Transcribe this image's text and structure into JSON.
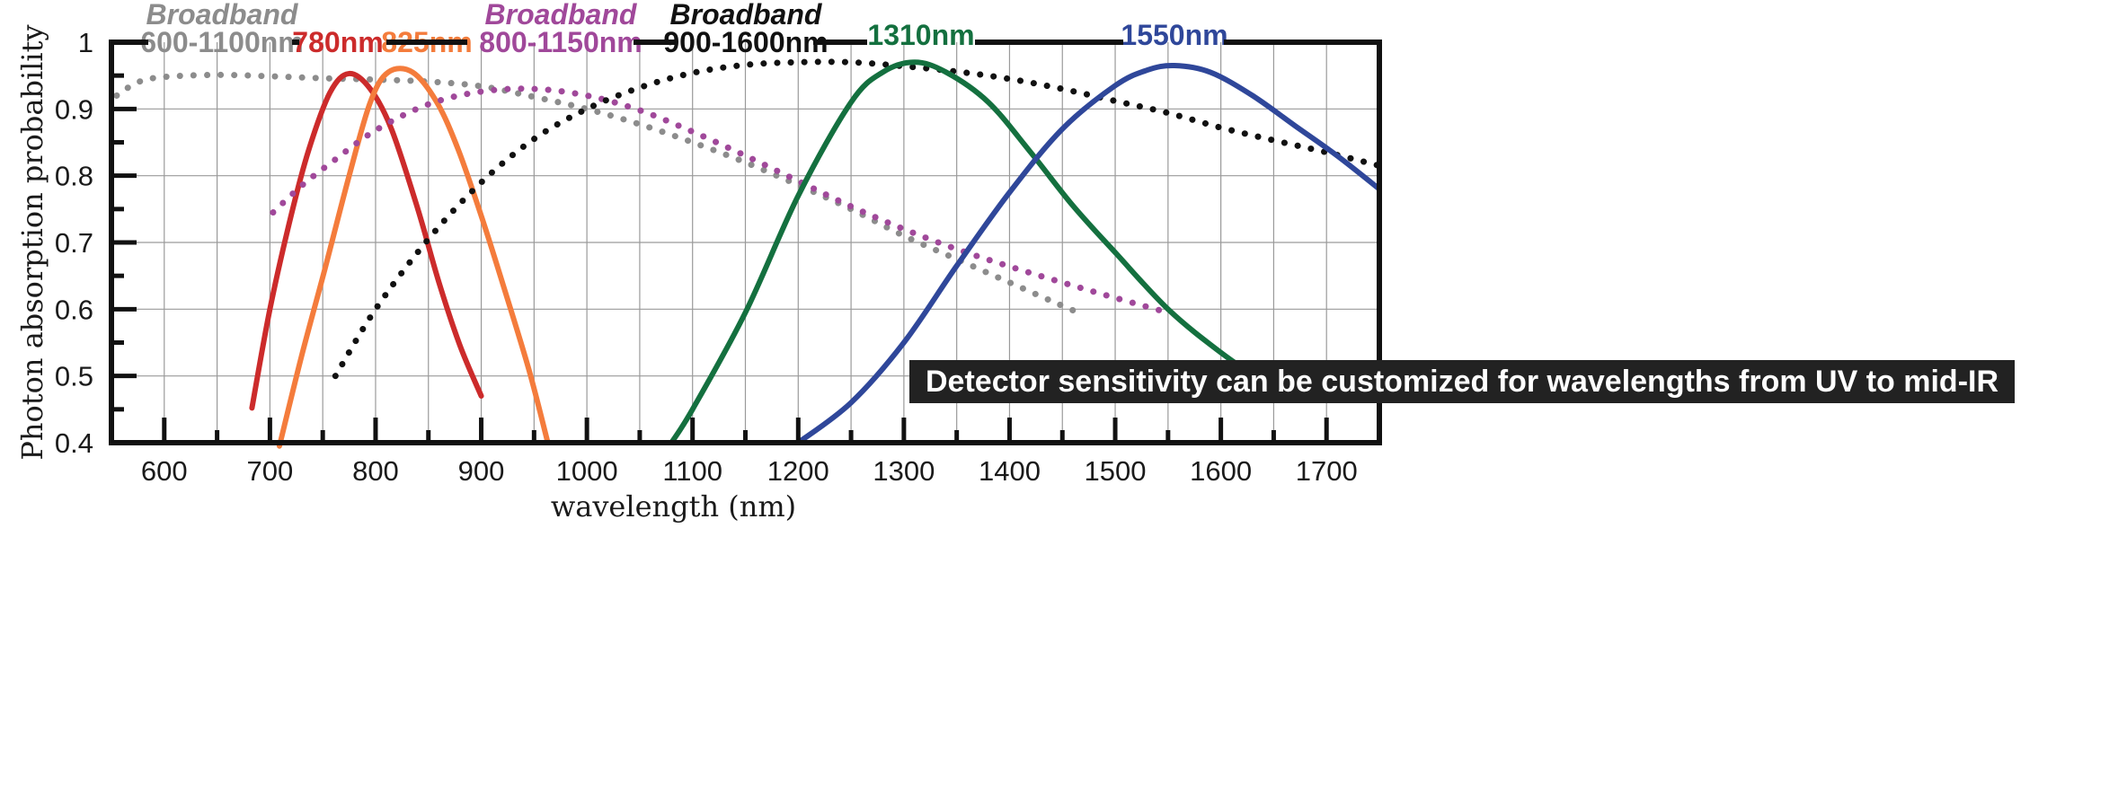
{
  "chart_data": {
    "type": "line",
    "title": "",
    "xlabel": "wavelength (nm)",
    "ylabel": "Photon absorption probability",
    "xlim": [
      550,
      1750
    ],
    "ylim": [
      0.4,
      1.0
    ],
    "x_ticks": [
      600,
      700,
      800,
      900,
      1000,
      1100,
      1200,
      1300,
      1400,
      1500,
      1600,
      1700
    ],
    "y_ticks": [
      0.4,
      0.5,
      0.6,
      0.7,
      0.8,
      0.9,
      1.0
    ],
    "x_tick_labels": [
      "600",
      "700",
      "800",
      "900",
      "1000",
      "1100",
      "1200",
      "1300",
      "1400",
      "1500",
      "1600",
      "1700"
    ],
    "y_tick_labels": [
      "0.4",
      "0.5",
      "0.6",
      "0.7",
      "0.8",
      "0.9",
      "1"
    ],
    "grid": true,
    "legend": "inline labels above curves",
    "note": "Detector sensitivity can be customized for wavelengths from UV to mid-IR",
    "series": [
      {
        "label_lines": [
          "Broadband",
          "600-1100nm"
        ],
        "color": "#8c8c8c",
        "style": "dotted",
        "x": [
          555,
          575,
          600,
          650,
          700,
          750,
          800,
          850,
          900,
          950,
          1000,
          1050,
          1100,
          1150,
          1200,
          1250,
          1300,
          1350,
          1400,
          1440,
          1465
        ],
        "y": [
          0.92,
          0.94,
          0.948,
          0.951,
          0.949,
          0.946,
          0.944,
          0.941,
          0.934,
          0.918,
          0.9,
          0.877,
          0.85,
          0.82,
          0.786,
          0.75,
          0.71,
          0.675,
          0.64,
          0.612,
          0.595
        ]
      },
      {
        "label_lines": [
          "780nm"
        ],
        "color": "#cc2b2b",
        "style": "solid",
        "x": [
          683,
          700,
          720,
          737,
          757,
          775,
          795,
          815,
          840,
          860,
          880,
          900
        ],
        "y": [
          0.452,
          0.6,
          0.74,
          0.84,
          0.925,
          0.953,
          0.93,
          0.87,
          0.75,
          0.64,
          0.545,
          0.47
        ]
      },
      {
        "label_lines": [
          "825nm"
        ],
        "color": "#f47c3c",
        "style": "solid",
        "x": [
          709,
          730,
          752,
          775,
          795,
          812,
          835,
          858,
          878,
          900,
          920,
          945,
          963
        ],
        "y": [
          0.395,
          0.53,
          0.66,
          0.8,
          0.91,
          0.955,
          0.955,
          0.91,
          0.84,
          0.74,
          0.64,
          0.51,
          0.4
        ]
      },
      {
        "label_lines": [
          "Broadband",
          "800-1150nm"
        ],
        "color": "#a0489a",
        "style": "dotted",
        "x": [
          703,
          730,
          760,
          800,
          850,
          900,
          950,
          1000,
          1050,
          1100,
          1150,
          1200,
          1250,
          1300,
          1350,
          1400,
          1450,
          1500,
          1552
        ],
        "y": [
          0.745,
          0.785,
          0.822,
          0.868,
          0.907,
          0.926,
          0.93,
          0.92,
          0.898,
          0.866,
          0.83,
          0.792,
          0.754,
          0.72,
          0.69,
          0.664,
          0.64,
          0.617,
          0.594
        ]
      },
      {
        "label_lines": [
          "Broadband",
          "900-1600nm"
        ],
        "color": "#111111",
        "style": "dotted",
        "x": [
          762,
          800,
          850,
          900,
          950,
          1000,
          1050,
          1100,
          1150,
          1200,
          1250,
          1300,
          1350,
          1400,
          1450,
          1500,
          1550,
          1600,
          1650,
          1700,
          1750
        ],
        "y": [
          0.5,
          0.6,
          0.705,
          0.79,
          0.855,
          0.9,
          0.932,
          0.954,
          0.966,
          0.97,
          0.97,
          0.964,
          0.956,
          0.945,
          0.93,
          0.912,
          0.894,
          0.872,
          0.853,
          0.835,
          0.815
        ]
      },
      {
        "label_lines": [
          "1310nm"
        ],
        "color": "#14703f",
        "style": "solid",
        "x": [
          1080,
          1100,
          1150,
          1200,
          1250,
          1280,
          1310,
          1340,
          1380,
          1420,
          1460,
          1500,
          1550,
          1600,
          1650
        ],
        "y": [
          0.4,
          0.45,
          0.595,
          0.77,
          0.91,
          0.955,
          0.97,
          0.955,
          0.91,
          0.835,
          0.755,
          0.685,
          0.6,
          0.535,
          0.48
        ]
      },
      {
        "label_lines": [
          "1550nm"
        ],
        "color": "#2f479a",
        "style": "solid",
        "x": [
          1200,
          1250,
          1300,
          1350,
          1400,
          1450,
          1500,
          1530,
          1556,
          1590,
          1630,
          1670,
          1710,
          1750
        ],
        "y": [
          0.4,
          0.46,
          0.55,
          0.665,
          0.775,
          0.87,
          0.935,
          0.958,
          0.965,
          0.955,
          0.92,
          0.875,
          0.83,
          0.78
        ]
      }
    ]
  }
}
